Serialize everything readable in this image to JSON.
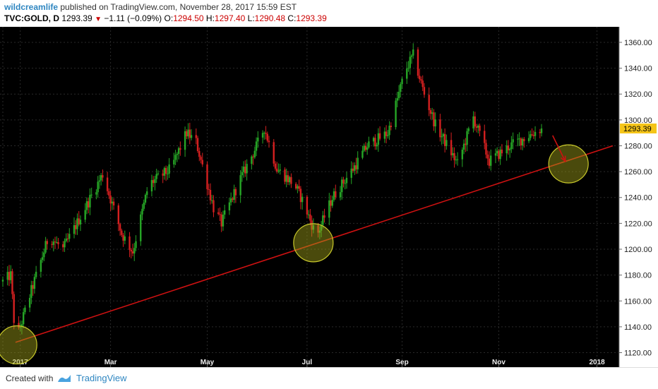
{
  "header": {
    "author": "wildcreamlife",
    "published_text": "published on TradingView.com, November 28, 2017 15:59 EST",
    "symbol": "TVC:GOLD, D",
    "last": "1293.39",
    "change": "−1.11 (−0.09%)",
    "o_label": "O:",
    "o_value": "1294.50",
    "h_label": "H:",
    "h_value": "1297.40",
    "l_label": "L:",
    "l_value": "1290.48",
    "c_label": "C:",
    "c_value": "1293.39"
  },
  "footer": {
    "created_with": "Created with",
    "brand": "TradingView"
  },
  "colors": {
    "background": "#000000",
    "grid": "#2a2a2a",
    "up": "#26a626",
    "down": "#d42020",
    "trendline": "#cc1111",
    "highlight_circle": "#a3a51a",
    "price_tag": "#f5c518"
  },
  "chart_data": {
    "type": "candlestick",
    "symbol": "TVC:GOLD",
    "interval": "D",
    "y_axis": {
      "ticks": [
        1120,
        1140,
        1160,
        1180,
        1200,
        1220,
        1240,
        1260,
        1280,
        1300,
        1320,
        1340,
        1360
      ],
      "tick_labels": [
        "1120.00",
        "1140.00",
        "1160.00",
        "1180.00",
        "1200.00",
        "1220.00",
        "1240.00",
        "1260.00",
        "1280.00",
        "1300.00",
        "1320.00",
        "1340.00",
        "1360.00"
      ],
      "ylim": [
        1111,
        1372
      ]
    },
    "x_axis": {
      "ticks": [
        "2016-12-23",
        "2017-01-03",
        "2017-03-01",
        "2017-05-01",
        "2017-07-03",
        "2017-09-01",
        "2017-11-01",
        "2018-01-02"
      ],
      "tick_labels": [
        "",
        "2017",
        "Mar",
        "May",
        "Jul",
        "Sep",
        "Nov",
        "2018"
      ],
      "xlim": [
        "2016-12-23",
        "2018-01-16"
      ]
    },
    "current_price_label": "1293.39",
    "anchors": [
      {
        "date": "2016-12-23",
        "close": 1175
      },
      {
        "date": "2016-12-28",
        "close": 1180
      },
      {
        "date": "2016-12-31",
        "close": 1128
      },
      {
        "date": "2017-01-10",
        "close": 1168
      },
      {
        "date": "2017-01-21",
        "close": 1210
      },
      {
        "date": "2017-01-30",
        "close": 1200
      },
      {
        "date": "2017-02-13",
        "close": 1232
      },
      {
        "date": "2017-02-24",
        "close": 1258
      },
      {
        "date": "2017-03-08",
        "close": 1212
      },
      {
        "date": "2017-03-15",
        "close": 1198
      },
      {
        "date": "2017-03-25",
        "close": 1250
      },
      {
        "date": "2017-04-08",
        "close": 1262
      },
      {
        "date": "2017-04-18",
        "close": 1290
      },
      {
        "date": "2017-04-24",
        "close": 1283
      },
      {
        "date": "2017-05-05",
        "close": 1232
      },
      {
        "date": "2017-05-10",
        "close": 1220
      },
      {
        "date": "2017-05-21",
        "close": 1252
      },
      {
        "date": "2017-06-02",
        "close": 1282
      },
      {
        "date": "2017-06-06",
        "close": 1294
      },
      {
        "date": "2017-06-14",
        "close": 1262
      },
      {
        "date": "2017-06-25",
        "close": 1250
      },
      {
        "date": "2017-06-30",
        "close": 1238
      },
      {
        "date": "2017-07-09",
        "close": 1210
      },
      {
        "date": "2017-07-19",
        "close": 1240
      },
      {
        "date": "2017-08-02",
        "close": 1264
      },
      {
        "date": "2017-08-10",
        "close": 1280
      },
      {
        "date": "2017-08-23",
        "close": 1290
      },
      {
        "date": "2017-09-03",
        "close": 1338
      },
      {
        "date": "2017-09-08",
        "close": 1350
      },
      {
        "date": "2017-09-15",
        "close": 1320
      },
      {
        "date": "2017-09-22",
        "close": 1296
      },
      {
        "date": "2017-10-06",
        "close": 1266
      },
      {
        "date": "2017-10-16",
        "close": 1302
      },
      {
        "date": "2017-10-26",
        "close": 1268
      },
      {
        "date": "2017-11-08",
        "close": 1280
      },
      {
        "date": "2017-11-20",
        "close": 1288
      },
      {
        "date": "2017-11-28",
        "close": 1293.39
      }
    ],
    "trendline": {
      "start": {
        "date": "2016-12-31",
        "value": 1128
      },
      "end": {
        "date": "2018-01-12",
        "value": 1280
      }
    },
    "highlight_circles": [
      {
        "date": "2017-01-01",
        "value": 1126
      },
      {
        "date": "2017-07-07",
        "value": 1205
      },
      {
        "date": "2017-12-15",
        "value": 1266
      }
    ],
    "arrow": {
      "from": {
        "date": "2017-12-05",
        "value": 1288
      },
      "to": {
        "date": "2017-12-13",
        "value": 1268
      }
    }
  }
}
